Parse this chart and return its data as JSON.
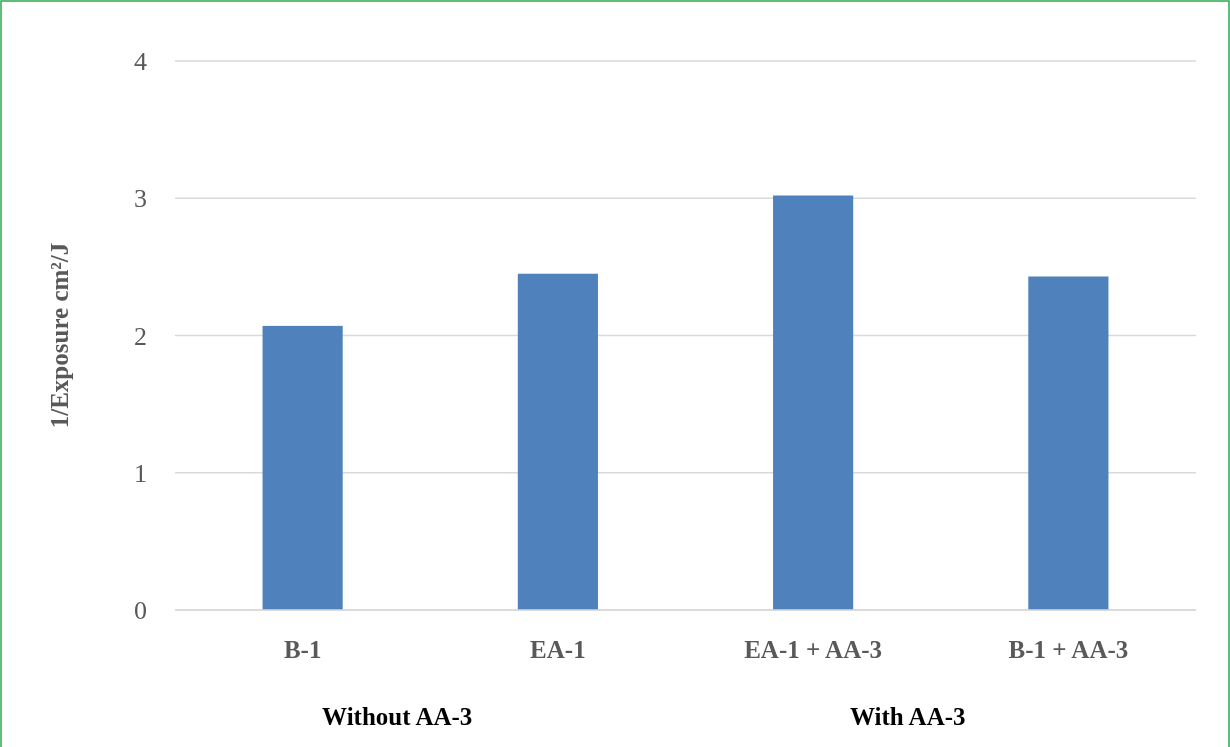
{
  "chart_data": {
    "type": "bar",
    "ylabel": "1/Exposure cm²/J",
    "categories": [
      "B-1",
      "EA-1",
      "EA-1 + AA-3",
      "B-1 + AA-3"
    ],
    "values": [
      2.07,
      2.45,
      3.02,
      2.43
    ],
    "color": "#4f81bd",
    "ylim": [
      0,
      4
    ],
    "yticks": [
      0,
      1,
      2,
      3,
      4
    ],
    "grid": "y",
    "annotations": [
      "Without AA-3",
      "With AA-3"
    ]
  }
}
